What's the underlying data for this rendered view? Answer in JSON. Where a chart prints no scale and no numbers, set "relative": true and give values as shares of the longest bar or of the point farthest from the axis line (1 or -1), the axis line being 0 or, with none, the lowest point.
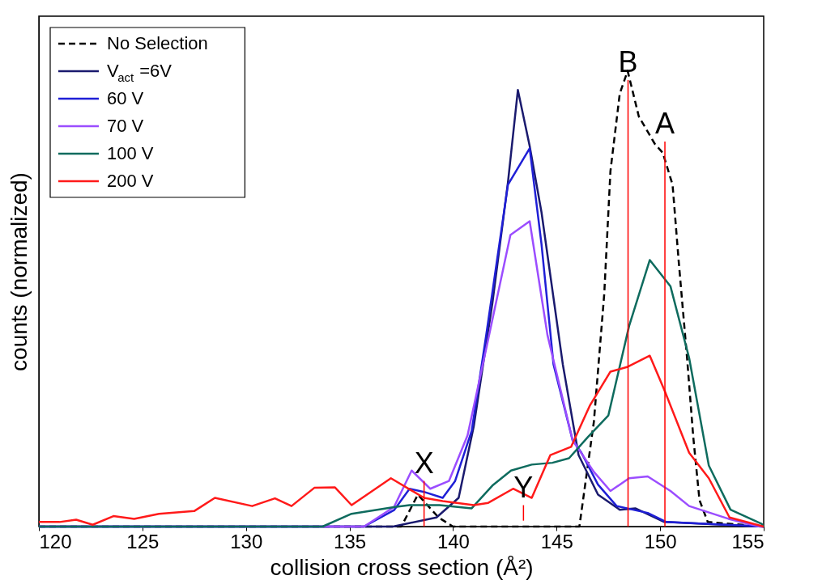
{
  "chart_data": {
    "type": "line",
    "relative": true,
    "xlabel": "collision cross section (Å²)",
    "ylabel": "counts (normalized)",
    "xlim": [
      120,
      155
    ],
    "xticks": [
      120,
      125,
      130,
      135,
      140,
      145,
      150,
      155
    ],
    "legend": "top left",
    "grid": false,
    "series": [
      {
        "name": "No Selection",
        "color": "#000000",
        "line_style": "dashed",
        "x": [
          120,
          137.5,
          138.3,
          139.3,
          140,
          146.1,
          146.8,
          147.3,
          147.6,
          148.05,
          148.43,
          148.97,
          149.74,
          150.13,
          150.6,
          150.9,
          151.3,
          151.6,
          151.9,
          152.3,
          155
        ],
        "values": [
          0,
          0,
          0.07,
          0.02,
          0,
          0,
          0.23,
          0.51,
          0.78,
          0.95,
          1.0,
          0.9,
          0.84,
          0.82,
          0.75,
          0.58,
          0.37,
          0.196,
          0.058,
          0.01,
          0
        ]
      },
      {
        "name": "V$_{act}$=6V",
        "color": "#1a1a6e",
        "line_style": "solid",
        "x": [
          120,
          135,
          137.1,
          139.2,
          140.27,
          141.0,
          141.9,
          142.65,
          143.13,
          143.7,
          144.27,
          145.3,
          146.06,
          147.0,
          148.05,
          148.8,
          150.2,
          155
        ],
        "values": [
          0,
          0,
          0,
          0.02,
          0.063,
          0.22,
          0.49,
          0.755,
          0.958,
          0.835,
          0.69,
          0.356,
          0.157,
          0.07,
          0.037,
          0.04,
          0.01,
          0
        ]
      },
      {
        "name": "60 V",
        "color": "#1f1fd6",
        "line_style": "solid",
        "x": [
          120,
          135.7,
          137.15,
          137.9,
          138.6,
          139.5,
          140.1,
          140.9,
          141.6,
          142.65,
          143.7,
          144.27,
          144.85,
          145.77,
          146.2,
          147.0,
          147.9,
          149.4,
          150.3,
          155
        ],
        "values": [
          0,
          0,
          0.036,
          0.083,
          0.076,
          0.063,
          0.1,
          0.21,
          0.42,
          0.75,
          0.83,
          0.62,
          0.356,
          0.19,
          0.162,
          0.092,
          0.045,
          0.03,
          0.01,
          0
        ]
      },
      {
        "name": "70 V",
        "color": "#9b4dff",
        "line_style": "solid",
        "x": [
          120,
          135.7,
          137.15,
          138.0,
          138.9,
          139.8,
          140.7,
          141.6,
          142.77,
          143.7,
          144.56,
          145.77,
          146.8,
          147.6,
          148.5,
          149.4,
          150.5,
          151.4,
          153.3,
          154.8,
          155
        ],
        "values": [
          0,
          0,
          0.043,
          0.123,
          0.083,
          0.1,
          0.2,
          0.39,
          0.64,
          0.67,
          0.42,
          0.19,
          0.12,
          0.078,
          0.106,
          0.11,
          0.078,
          0.045,
          0.017,
          0,
          0
        ]
      },
      {
        "name": "100 V",
        "color": "#0e6b5e",
        "line_style": "solid",
        "x": [
          120,
          133.7,
          135.1,
          137.2,
          137.9,
          139.35,
          140.9,
          141.9,
          142.8,
          143.8,
          144.8,
          145.6,
          146.5,
          147.5,
          148.5,
          149.5,
          150.5,
          151.4,
          152.35,
          153.4,
          154.9,
          155
        ],
        "values": [
          0,
          0,
          0.028,
          0.043,
          0.047,
          0.047,
          0.04,
          0.09,
          0.123,
          0.136,
          0.14,
          0.15,
          0.196,
          0.244,
          0.44,
          0.585,
          0.527,
          0.37,
          0.134,
          0.037,
          0.006,
          0
        ]
      },
      {
        "name": "200 V",
        "color": "#ff1a1a",
        "line_style": "solid",
        "x": [
          120,
          121.0,
          121.8,
          122.6,
          123.6,
          124.6,
          125.8,
          127.5,
          128.5,
          130.3,
          131.4,
          132.2,
          133.3,
          134.3,
          135.1,
          137.0,
          138.6,
          139.5,
          141.0,
          141.7,
          142.9,
          143.8,
          144.7,
          145.7,
          146.6,
          147.6,
          148.4,
          149.5,
          150.2,
          151.4,
          152.35,
          153.35,
          155
        ],
        "values": [
          0.01,
          0.01,
          0.015,
          0.004,
          0.023,
          0.017,
          0.028,
          0.034,
          0.063,
          0.045,
          0.062,
          0.045,
          0.085,
          0.086,
          0.047,
          0.106,
          0.063,
          0.056,
          0.047,
          0.052,
          0.083,
          0.063,
          0.157,
          0.175,
          0.265,
          0.34,
          0.35,
          0.375,
          0.3,
          0.162,
          0.106,
          0.02,
          0
        ]
      },
      {
        "type": "line",
        "color": "#ff0000",
        "line_style": "solid",
        "x": [
          148.45,
          148.45
        ],
        "values": [
          0,
          0.98
        ]
      },
      {
        "type": "line",
        "color": "#ff0000",
        "line_style": "solid",
        "x": [
          150.23,
          150.23
        ],
        "values": [
          0,
          0.845
        ]
      },
      {
        "type": "line",
        "color": "#ff0000",
        "line_style": "solid",
        "x": [
          138.6,
          138.6
        ],
        "values": [
          0,
          0.1
        ]
      },
      {
        "type": "line",
        "color": "#ff0000",
        "line_style": "solid",
        "x": [
          143.4,
          143.4
        ],
        "values": [
          0.013,
          0.047
        ]
      }
    ],
    "annotations": [
      {
        "text": "B",
        "x": 148.45,
        "y": 0.98
      },
      {
        "text": "A",
        "x": 150.23,
        "y": 0.845
      },
      {
        "text": "X",
        "x": 138.6,
        "y": 0.1
      },
      {
        "text": "Y",
        "x": 143.4,
        "y": 0.047
      }
    ]
  }
}
